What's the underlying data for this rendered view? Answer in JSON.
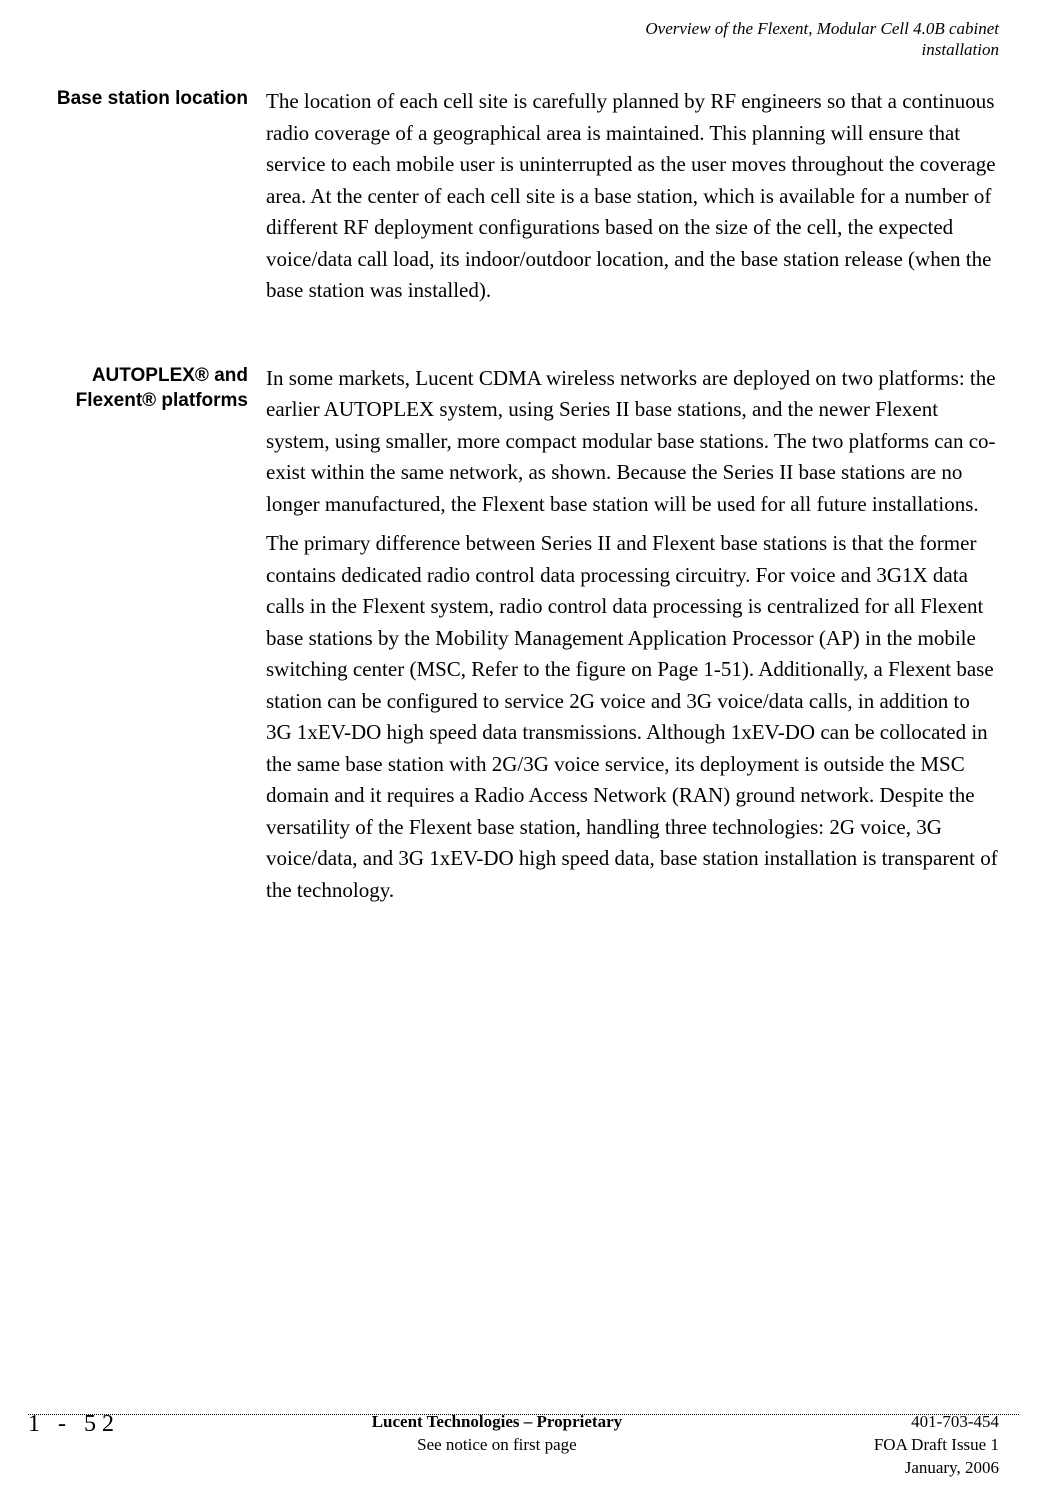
{
  "header": {
    "line1": "Overview of the Flexent, Modular Cell 4.0B cabinet",
    "line2": "installation"
  },
  "sections": [
    {
      "label": "Base station location",
      "paragraphs": [
        "The location of each cell site is carefully planned by RF engineers so that a continuous radio coverage of a geographical area is maintained. This planning will ensure that service to each mobile user is uninterrupted as the user moves throughout the coverage area. At the center of each cell site is a base station, which is available for a number of different RF deployment configurations based on the size of the cell, the expected voice/data call load, its indoor/outdoor location, and the base station release (when the base station was installed)."
      ]
    },
    {
      "label": "AUTOPLEX® and Flexent® platforms",
      "paragraphs": [
        "In some markets, Lucent CDMA wireless networks are deployed on two platforms: the earlier AUTOPLEX system, using Series II base stations, and the newer Flexent system, using smaller, more compact modular base stations. The two platforms can co-exist within the same network, as shown. Because the Series II base stations are no longer manufactured, the Flexent base station will be used for all future installations.",
        "The primary difference between Series II and Flexent base stations is that the former contains dedicated radio control data processing circuitry. For voice and 3G1X data calls in the Flexent system, radio control data processing is centralized for all Flexent base stations by the Mobility Management Application Processor (AP) in the mobile switching center (MSC, Refer to the figure on Page 1-51). Additionally, a Flexent base station can be configured to service 2G voice and 3G voice/data calls, in addition to 3G 1xEV-DO high speed data transmissions. Although 1xEV-DO can be collocated in the same base station with 2G/3G voice service, its deployment is outside the MSC domain and it requires a Radio Access Network (RAN) ground network. Despite the versatility of the Flexent base station, handling three technologies: 2G voice, 3G voice/data, and 3G 1xEV-DO high speed data, base station installation is transparent of the technology."
      ]
    }
  ],
  "footer": {
    "page_number": "1 - 52",
    "center_bold": "Lucent Technologies – Proprietary",
    "center_plain": "See notice on first page",
    "doc_number": "401-703-454",
    "issue": "FOA Draft Issue 1",
    "date": "January, 2006"
  }
}
